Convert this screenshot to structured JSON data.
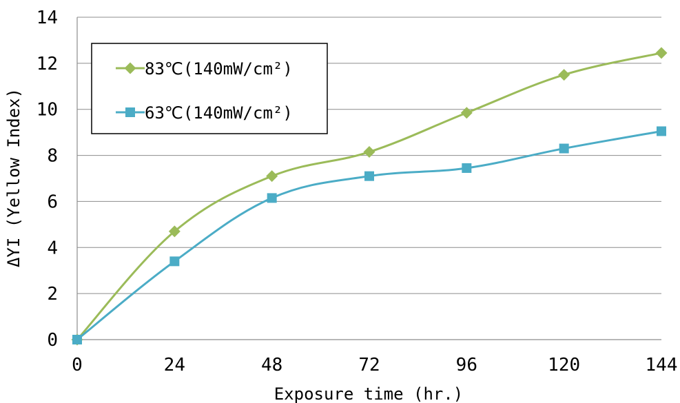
{
  "chart_data": {
    "type": "line",
    "title": "",
    "xlabel": "Exposure time (hr.)",
    "ylabel": "ΔYI (Yellow Index)",
    "x": [
      0,
      24,
      48,
      72,
      96,
      120,
      144
    ],
    "xlim": [
      0,
      144
    ],
    "ylim": [
      0,
      14
    ],
    "xticks": [
      "0",
      "24",
      "48",
      "72",
      "96",
      "120",
      "144"
    ],
    "yticks": [
      "0",
      "2",
      "4",
      "6",
      "8",
      "10",
      "12",
      "14"
    ],
    "grid": "horizontal",
    "legend_position": "top-left",
    "series": [
      {
        "name": "83℃(140mW/cm²)",
        "values": [
          0,
          4.7,
          7.1,
          8.15,
          9.85,
          11.5,
          12.45
        ],
        "color": "#9BBB59",
        "marker": "diamond"
      },
      {
        "name": "63℃(140mW/cm²)",
        "values": [
          0,
          3.4,
          6.15,
          7.1,
          7.45,
          8.3,
          9.05
        ],
        "color": "#4BACC6",
        "marker": "square"
      }
    ]
  }
}
